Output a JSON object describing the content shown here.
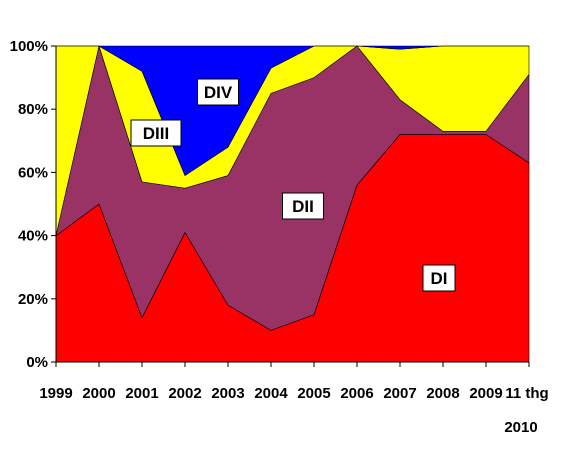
{
  "chart_data": {
    "type": "area",
    "stacked": "percent",
    "categories": [
      "1999",
      "2000",
      "2001",
      "2002",
      "2003",
      "2004",
      "2005",
      "2006",
      "2007",
      "2008",
      "2009",
      "11 thg 2010"
    ],
    "series": [
      {
        "name": "DI",
        "color": "#ff0000",
        "values": [
          40,
          50,
          14,
          41,
          18,
          10,
          15,
          56,
          72,
          72,
          72,
          63
        ]
      },
      {
        "name": "DII",
        "color": "#993366",
        "values": [
          0,
          50,
          43,
          14,
          41,
          75,
          75,
          44,
          11,
          1,
          1,
          28
        ]
      },
      {
        "name": "DIII",
        "color": "#ffff00",
        "values": [
          60,
          0,
          35,
          4,
          9,
          8,
          10,
          0,
          16,
          27,
          27,
          9
        ]
      },
      {
        "name": "DIV",
        "color": "#0000ff",
        "values": [
          0,
          0,
          8,
          41,
          32,
          7,
          0,
          0,
          1,
          0,
          0,
          0
        ]
      }
    ],
    "yticks": [
      "0%",
      "20%",
      "40%",
      "60%",
      "80%",
      "100%"
    ],
    "ylim": [
      0,
      100
    ],
    "grid": false,
    "legend": "none"
  }
}
